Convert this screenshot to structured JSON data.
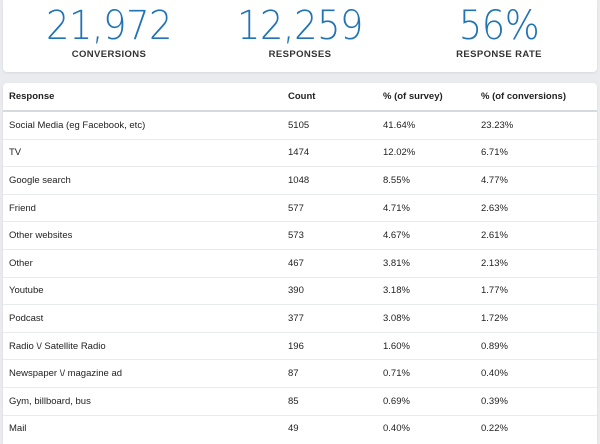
{
  "stats": {
    "conversions": {
      "value": "21,972",
      "label": "CONVERSIONS"
    },
    "responses": {
      "value": "12,259",
      "label": "RESPONSES"
    },
    "response_rate": {
      "value": "56%",
      "label": "RESPONSE RATE"
    }
  },
  "colors": {
    "accent": "#2173b3",
    "background": "#e9ebee",
    "card": "#ffffff"
  },
  "table": {
    "headers": [
      "Response",
      "Count",
      "% (of survey)",
      "% (of conversions)"
    ],
    "rows": [
      [
        "Social Media (eg Facebook, etc)",
        "5105",
        "41.64%",
        "23.23%"
      ],
      [
        "TV",
        "1474",
        "12.02%",
        "6.71%"
      ],
      [
        "Google search",
        "1048",
        "8.55%",
        "4.77%"
      ],
      [
        "Friend",
        "577",
        "4.71%",
        "2.63%"
      ],
      [
        "Other websites",
        "573",
        "4.67%",
        "2.61%"
      ],
      [
        "Other",
        "467",
        "3.81%",
        "2.13%"
      ],
      [
        "Youtube",
        "390",
        "3.18%",
        "1.77%"
      ],
      [
        "Podcast",
        "377",
        "3.08%",
        "1.72%"
      ],
      [
        "Radio \\/ Satellite Radio",
        "196",
        "1.60%",
        "0.89%"
      ],
      [
        "Newspaper \\/ magazine ad",
        "87",
        "0.71%",
        "0.40%"
      ],
      [
        "Gym, billboard, bus",
        "85",
        "0.69%",
        "0.39%"
      ],
      [
        "Mail",
        "49",
        "0.40%",
        "0.22%"
      ]
    ]
  }
}
